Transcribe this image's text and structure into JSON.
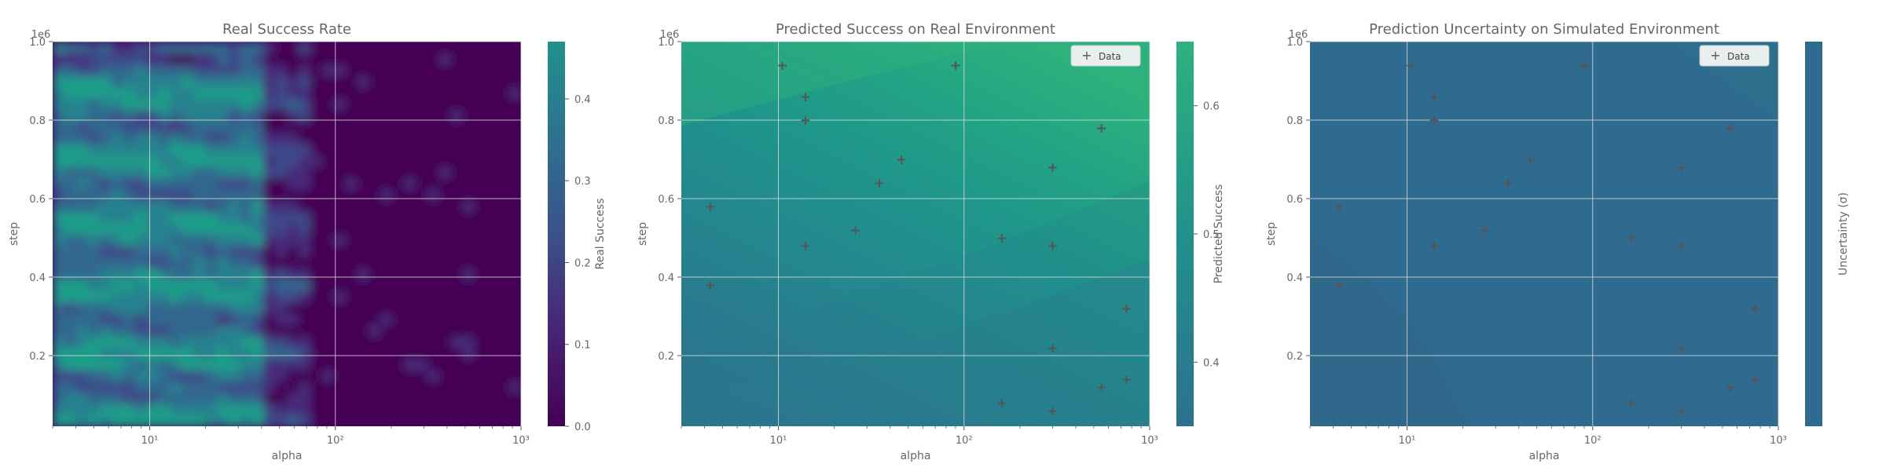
{
  "chart_data": [
    {
      "type": "heatmap",
      "title": "Real Success Rate",
      "xlabel": "alpha",
      "ylabel": "step",
      "y_multiplier": "1e6",
      "x_scale": "log",
      "xlim": [
        3,
        1000
      ],
      "ylim": [
        0.02,
        1.0
      ],
      "x_ticks": [
        "10¹",
        "10²",
        "10³"
      ],
      "y_ticks": [
        "0.2",
        "0.4",
        "0.6",
        "0.8",
        "1.0"
      ],
      "colorbar": {
        "label": "Real Success",
        "range": [
          0.0,
          0.47
        ],
        "ticks": [
          "0.0",
          "0.1",
          "0.2",
          "0.3",
          "0.4"
        ]
      },
      "description_of_field": "success is high (0.2–0.45) for alpha below ~40 and near 0 for alpha above ~70"
    },
    {
      "type": "scatter",
      "title": "Predicted Success on Real Environment",
      "xlabel": "alpha",
      "ylabel": "step",
      "y_multiplier": "1e6",
      "x_scale": "log",
      "xlim": [
        3,
        1000
      ],
      "ylim": [
        0.02,
        1.0
      ],
      "x_ticks": [
        "10¹",
        "10²",
        "10³"
      ],
      "y_ticks": [
        "0.2",
        "0.4",
        "0.6",
        "0.8",
        "1.0"
      ],
      "colorbar": {
        "label": "Predicted Success",
        "range": [
          0.35,
          0.65
        ],
        "ticks": [
          "0.4",
          "0.5",
          "0.6"
        ]
      },
      "legend": {
        "label": "Data",
        "position": "top-right"
      },
      "points": [
        {
          "x": 4.3,
          "y": 0.58
        },
        {
          "x": 4.3,
          "y": 0.38
        },
        {
          "x": 10.5,
          "y": 0.94
        },
        {
          "x": 14,
          "y": 0.86
        },
        {
          "x": 14,
          "y": 0.8
        },
        {
          "x": 14,
          "y": 0.48
        },
        {
          "x": 26,
          "y": 0.52
        },
        {
          "x": 35,
          "y": 0.64
        },
        {
          "x": 46,
          "y": 0.7
        },
        {
          "x": 90,
          "y": 0.94
        },
        {
          "x": 160,
          "y": 0.5
        },
        {
          "x": 160,
          "y": 0.08
        },
        {
          "x": 300,
          "y": 0.68
        },
        {
          "x": 300,
          "y": 0.48
        },
        {
          "x": 300,
          "y": 0.22
        },
        {
          "x": 300,
          "y": 0.06
        },
        {
          "x": 550,
          "y": 0.78
        },
        {
          "x": 550,
          "y": 0.12
        },
        {
          "x": 750,
          "y": 0.32
        },
        {
          "x": 750,
          "y": 0.14
        }
      ]
    },
    {
      "type": "scatter",
      "title": "Prediction Uncertainty on Simulated Environment",
      "xlabel": "alpha",
      "ylabel": "step",
      "y_multiplier": "1e6",
      "x_scale": "log",
      "xlim": [
        3,
        1000
      ],
      "ylim": [
        0.02,
        1.0
      ],
      "x_ticks": [
        "10¹",
        "10²",
        "10³"
      ],
      "y_ticks": [
        "0.2",
        "0.4",
        "0.6",
        "0.8",
        "1.0"
      ],
      "colorbar": {
        "label": "Uncertainty (σ)",
        "ticks": []
      },
      "legend": {
        "label": "Data",
        "position": "top-right"
      },
      "points": [
        {
          "x": 4.3,
          "y": 0.58
        },
        {
          "x": 4.3,
          "y": 0.38
        },
        {
          "x": 10.5,
          "y": 0.94
        },
        {
          "x": 14,
          "y": 0.86
        },
        {
          "x": 14,
          "y": 0.8
        },
        {
          "x": 14,
          "y": 0.48
        },
        {
          "x": 26,
          "y": 0.52
        },
        {
          "x": 35,
          "y": 0.64
        },
        {
          "x": 46,
          "y": 0.7
        },
        {
          "x": 90,
          "y": 0.94
        },
        {
          "x": 160,
          "y": 0.5
        },
        {
          "x": 160,
          "y": 0.08
        },
        {
          "x": 300,
          "y": 0.68
        },
        {
          "x": 300,
          "y": 0.48
        },
        {
          "x": 300,
          "y": 0.22
        },
        {
          "x": 300,
          "y": 0.06
        },
        {
          "x": 550,
          "y": 0.78
        },
        {
          "x": 550,
          "y": 0.12
        },
        {
          "x": 750,
          "y": 0.32
        },
        {
          "x": 750,
          "y": 0.14
        }
      ]
    }
  ],
  "colors": {
    "viridis_dark": "#440154",
    "viridis_mid": "#31688e",
    "viridis_teal": "#21918c",
    "viridis_green": "#2db27d",
    "marker": "#dd1111",
    "grid": "#dddddd",
    "uncertainty_base": "#2f6b8e"
  }
}
